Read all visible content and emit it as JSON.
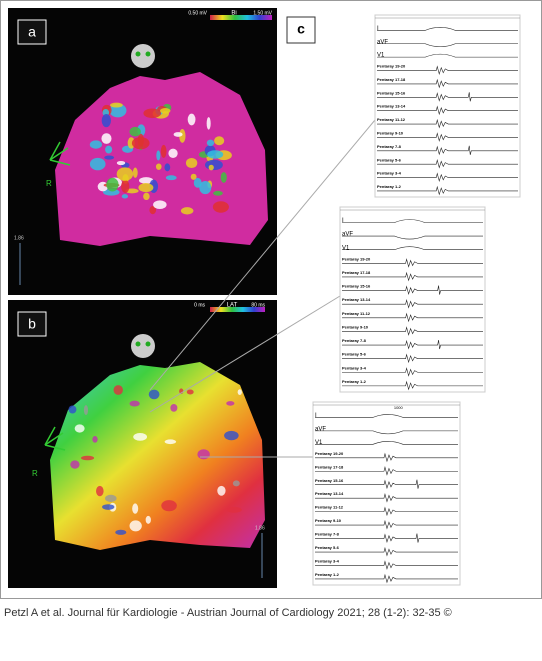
{
  "panels": {
    "a": {
      "label": "a",
      "scale": {
        "min": "0.50 mV",
        "name": "Bi",
        "max": "1.50 mV"
      },
      "orientation": "R",
      "zoom": "1.86"
    },
    "b": {
      "label": "b",
      "scale": {
        "min": "0 ms",
        "name": "LAT",
        "max": "80 ms"
      },
      "orientation": "R",
      "zoom": "1.86"
    }
  },
  "ecg": {
    "label": "c",
    "strips": [
      {
        "leads": [
          "I",
          "aVF",
          "V1",
          "Pentaray 19-20",
          "Pentaray 17-18",
          "Pentaray 15-16",
          "Pentaray 13-14",
          "Pentaray 11-12",
          "Pentaray 9-10",
          "Pentaray 7-8",
          "Pentaray 5-6",
          "Pentaray 3-4",
          "Pentaray 1-2"
        ]
      },
      {
        "leads": [
          "I",
          "aVF",
          "V1",
          "Pentaray 19-20",
          "Pentaray 17-18",
          "Pentaray 15-16",
          "Pentaray 13-14",
          "Pentaray 11-12",
          "Pentaray 9-10",
          "Pentaray 7-8",
          "Pentaray 5-6",
          "Pentaray 3-4",
          "Pentaray 1-2"
        ]
      },
      {
        "marker": "1000",
        "leads": [
          "I",
          "aVF",
          "V1",
          "Pentaray 19-20",
          "Pentaray 17-18",
          "Pentaray 15-16",
          "Pentaray 13-14",
          "Pentaray 11-12",
          "Pentaray 9-10",
          "Pentaray 7-8",
          "Pentaray 5-6",
          "Pentaray 3-4",
          "Pentaray 1-2"
        ]
      }
    ]
  },
  "caption": "Petzl A et al. Journal für Kardiologie - Austrian Journal of Cardiology 2021; 28 (1-2): 32-35 ©"
}
